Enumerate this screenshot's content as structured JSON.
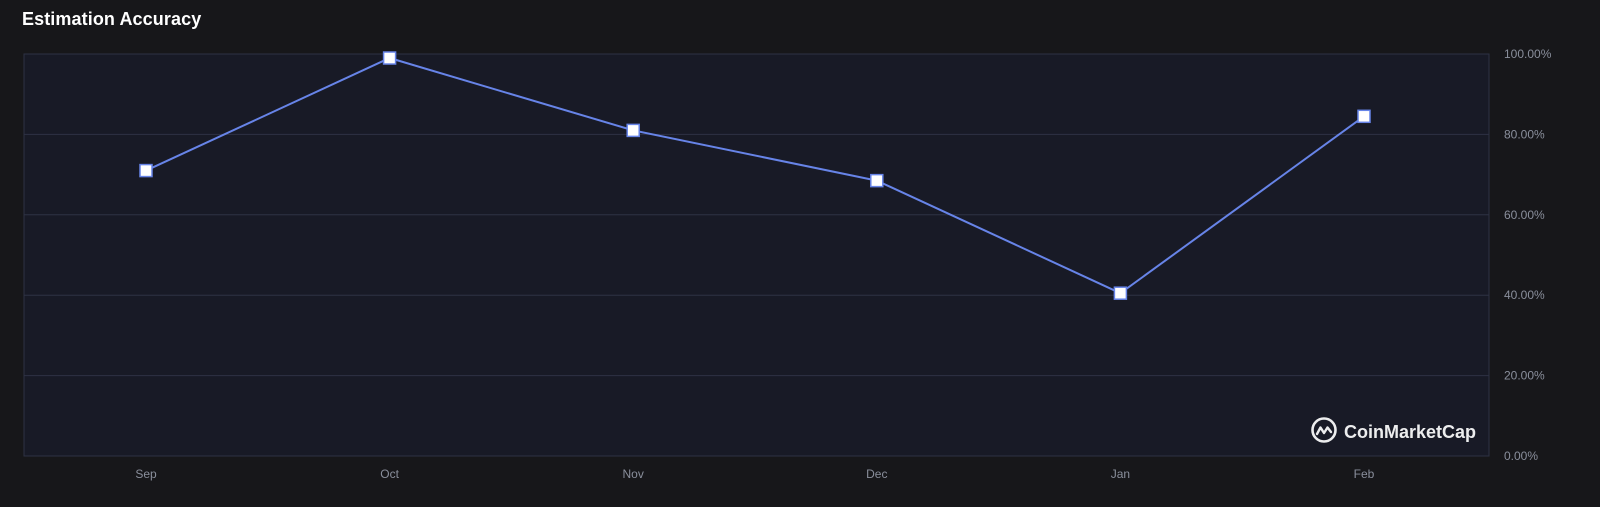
{
  "title": "Estimation Accuracy",
  "watermark": {
    "text": "CoinMarketCap",
    "icon": "coinmarketcap-logo-icon"
  },
  "colors": {
    "background": "#17171a",
    "plot_background": "#181a26",
    "grid": "#2e3244",
    "line": "#6784e8",
    "marker_fill": "#ffffff",
    "tick_text": "#8a8f9c"
  },
  "chart_data": {
    "type": "line",
    "title": "Estimation Accuracy",
    "categories": [
      "Sep",
      "Oct",
      "Nov",
      "Dec",
      "Jan",
      "Feb"
    ],
    "series": [
      {
        "values": [
          71,
          99,
          81,
          68.5,
          40.5,
          84.5
        ]
      }
    ],
    "y_ticks": [
      "0.00%",
      "20.00%",
      "40.00%",
      "60.00%",
      "80.00%",
      "100.00%"
    ],
    "ylim": [
      0,
      100
    ],
    "y_axis_position": "right",
    "grid": true,
    "legend": "none",
    "marker": "square"
  }
}
